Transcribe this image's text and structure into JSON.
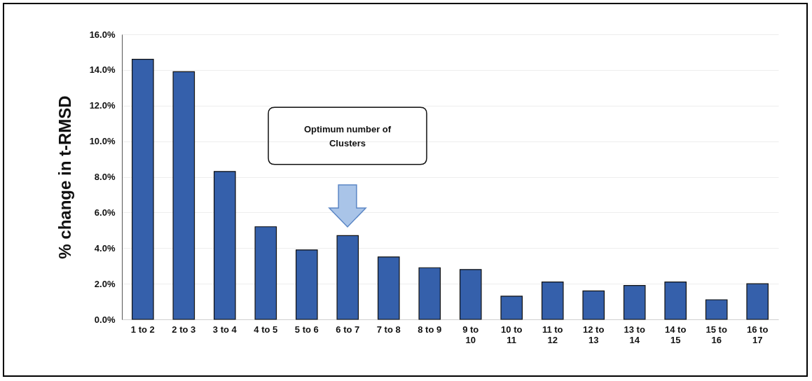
{
  "chart_data": {
    "type": "bar",
    "ylabel": "% change in t-RMSD",
    "categories": [
      "1 to 2",
      "2 to 3",
      "3 to 4",
      "4 to 5",
      "5 to 6",
      "6 to 7",
      "7 to 8",
      "8 to 9",
      "9 to 10",
      "10 to 11",
      "11 to 12",
      "12 to 13",
      "13 to 14",
      "14 to 15",
      "15 to 16",
      "16 to 17"
    ],
    "values": [
      14.6,
      13.9,
      8.3,
      5.2,
      3.9,
      4.7,
      3.5,
      2.9,
      2.8,
      1.3,
      2.1,
      1.6,
      1.9,
      2.1,
      1.1,
      2.0
    ],
    "color": "#3560ab",
    "ylim": [
      0,
      16
    ],
    "yticks": [
      {
        "value": 0,
        "label": "0.0%"
      },
      {
        "value": 2,
        "label": "2.0%"
      },
      {
        "value": 4,
        "label": "4.0%"
      },
      {
        "value": 6,
        "label": "6.0%"
      },
      {
        "value": 8,
        "label": "8.0%"
      },
      {
        "value": 10,
        "label": "10.0%"
      },
      {
        "value": 12,
        "label": "12.0%"
      },
      {
        "value": 14,
        "label": "14.0%"
      },
      {
        "value": 16,
        "label": "16.0%"
      }
    ],
    "grid": "y",
    "annotations": [
      "Optimum number of\nClusters"
    ]
  }
}
